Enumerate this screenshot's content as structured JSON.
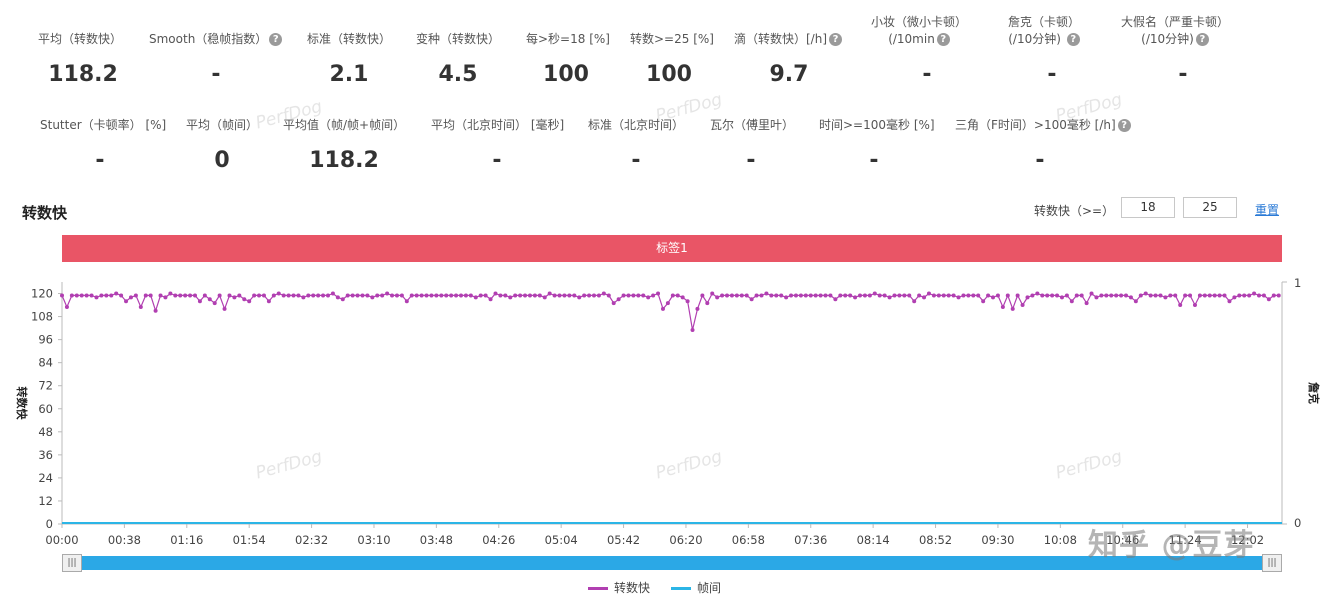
{
  "stats_row1": [
    {
      "label": "平均（转数快）",
      "value": "118.2",
      "help": false
    },
    {
      "label": "Smooth（稳帧指数）",
      "value": "-",
      "help": true
    },
    {
      "label": "标准（转数快）",
      "value": "2.1",
      "help": false
    },
    {
      "label": "变种（转数快）",
      "value": "4.5",
      "help": false
    },
    {
      "label": "每>秒=18 [%]",
      "value": "100",
      "help": false
    },
    {
      "label": "转数>=25 [%]",
      "value": "100",
      "help": false
    },
    {
      "label": "滴（转数快）[/h]",
      "value": "9.7",
      "help": true
    },
    {
      "label": "小妆（微小卡顿）",
      "label2": "(/10min",
      "value": "-",
      "help": true
    },
    {
      "label": "詹克（卡顿）",
      "label2": "(/10分钟)",
      "value": "-",
      "help": true
    },
    {
      "label": "大假名（严重卡顿）",
      "label2": "(/10分钟)",
      "value": "-",
      "help": true
    }
  ],
  "stats_row2": [
    {
      "label": "Stutter（卡顿率） [%]",
      "value": "-",
      "help": false
    },
    {
      "label": "平均（帧间）",
      "value": "0",
      "help": false
    },
    {
      "label": "平均值（帧/帧+帧间）",
      "value": "118.2",
      "help": false
    },
    {
      "label": "平均（北京时间） [毫秒]",
      "value": "-",
      "help": false
    },
    {
      "label": "标准（北京时间）",
      "value": "-",
      "help": false
    },
    {
      "label": "瓦尔（傅里叶）",
      "value": "-",
      "help": false
    },
    {
      "label": "时间>=100毫秒 [%]",
      "value": "-",
      "help": false
    },
    {
      "label": "三角（F时间）>100毫秒 [/h]",
      "value": "-",
      "help": true
    }
  ],
  "section": {
    "title": "转数快",
    "filter_label": "转数快（>=）",
    "threshold_low": "18",
    "threshold_high": "25",
    "reset": "重置"
  },
  "label_bar": {
    "text": "标签1",
    "color": "#e95566"
  },
  "icons": {
    "help": "question-circle-icon",
    "handle": "grip-icon"
  },
  "legend": [
    {
      "name": "转数快",
      "color": "#b13fb1"
    },
    {
      "name": "帧间",
      "color": "#2bb5e6"
    }
  ],
  "watermark": "PerfDog",
  "credit": "知乎 @豆芽",
  "chart_data": {
    "type": "line",
    "ylabel": "转数快",
    "y2label": "詹克",
    "ylim": [
      0,
      126
    ],
    "yticks": [
      0,
      12,
      24,
      36,
      48,
      60,
      72,
      84,
      96,
      108,
      120
    ],
    "y2ticks": [
      0,
      1
    ],
    "xticks": [
      "00:00",
      "00:38",
      "01:16",
      "01:54",
      "02:32",
      "03:10",
      "03:48",
      "04:26",
      "05:04",
      "05:42",
      "06:20",
      "06:58",
      "07:36",
      "08:14",
      "08:52",
      "09:30",
      "10:08",
      "10:46",
      "11:24",
      "12:02"
    ],
    "x_range_seconds": [
      0,
      743
    ],
    "series": [
      {
        "name": "转数快",
        "color": "#b13fb1",
        "baseline": 119,
        "dips": [
          {
            "t": 4,
            "v": 113
          },
          {
            "t": 40,
            "v": 116
          },
          {
            "t": 48,
            "v": 113
          },
          {
            "t": 58,
            "v": 111
          },
          {
            "t": 85,
            "v": 116
          },
          {
            "t": 92,
            "v": 115
          },
          {
            "t": 115,
            "v": 116
          },
          {
            "t": 90,
            "v": 117
          },
          {
            "t": 98,
            "v": 112
          },
          {
            "t": 110,
            "v": 117
          },
          {
            "t": 125,
            "v": 116
          },
          {
            "t": 170,
            "v": 117
          },
          {
            "t": 210,
            "v": 116
          },
          {
            "t": 260,
            "v": 117
          },
          {
            "t": 340,
            "v": 117
          },
          {
            "t": 380,
            "v": 116
          },
          {
            "t": 335,
            "v": 115
          },
          {
            "t": 365,
            "v": 114
          },
          {
            "t": 366,
            "v": 112
          },
          {
            "t": 370,
            "v": 115
          },
          {
            "t": 383,
            "v": 113
          },
          {
            "t": 385,
            "v": 101
          },
          {
            "t": 388,
            "v": 112
          },
          {
            "t": 392,
            "v": 115
          },
          {
            "t": 420,
            "v": 117
          },
          {
            "t": 470,
            "v": 117
          },
          {
            "t": 520,
            "v": 116
          },
          {
            "t": 560,
            "v": 116
          },
          {
            "t": 574,
            "v": 113
          },
          {
            "t": 578,
            "v": 112
          },
          {
            "t": 585,
            "v": 114
          },
          {
            "t": 615,
            "v": 116
          },
          {
            "t": 625,
            "v": 115
          },
          {
            "t": 655,
            "v": 116
          },
          {
            "t": 680,
            "v": 114
          },
          {
            "t": 690,
            "v": 114
          },
          {
            "t": 712,
            "v": 116
          },
          {
            "t": 735,
            "v": 117
          }
        ]
      },
      {
        "name": "帧间",
        "color": "#2bb5e6",
        "value": 0
      }
    ]
  }
}
